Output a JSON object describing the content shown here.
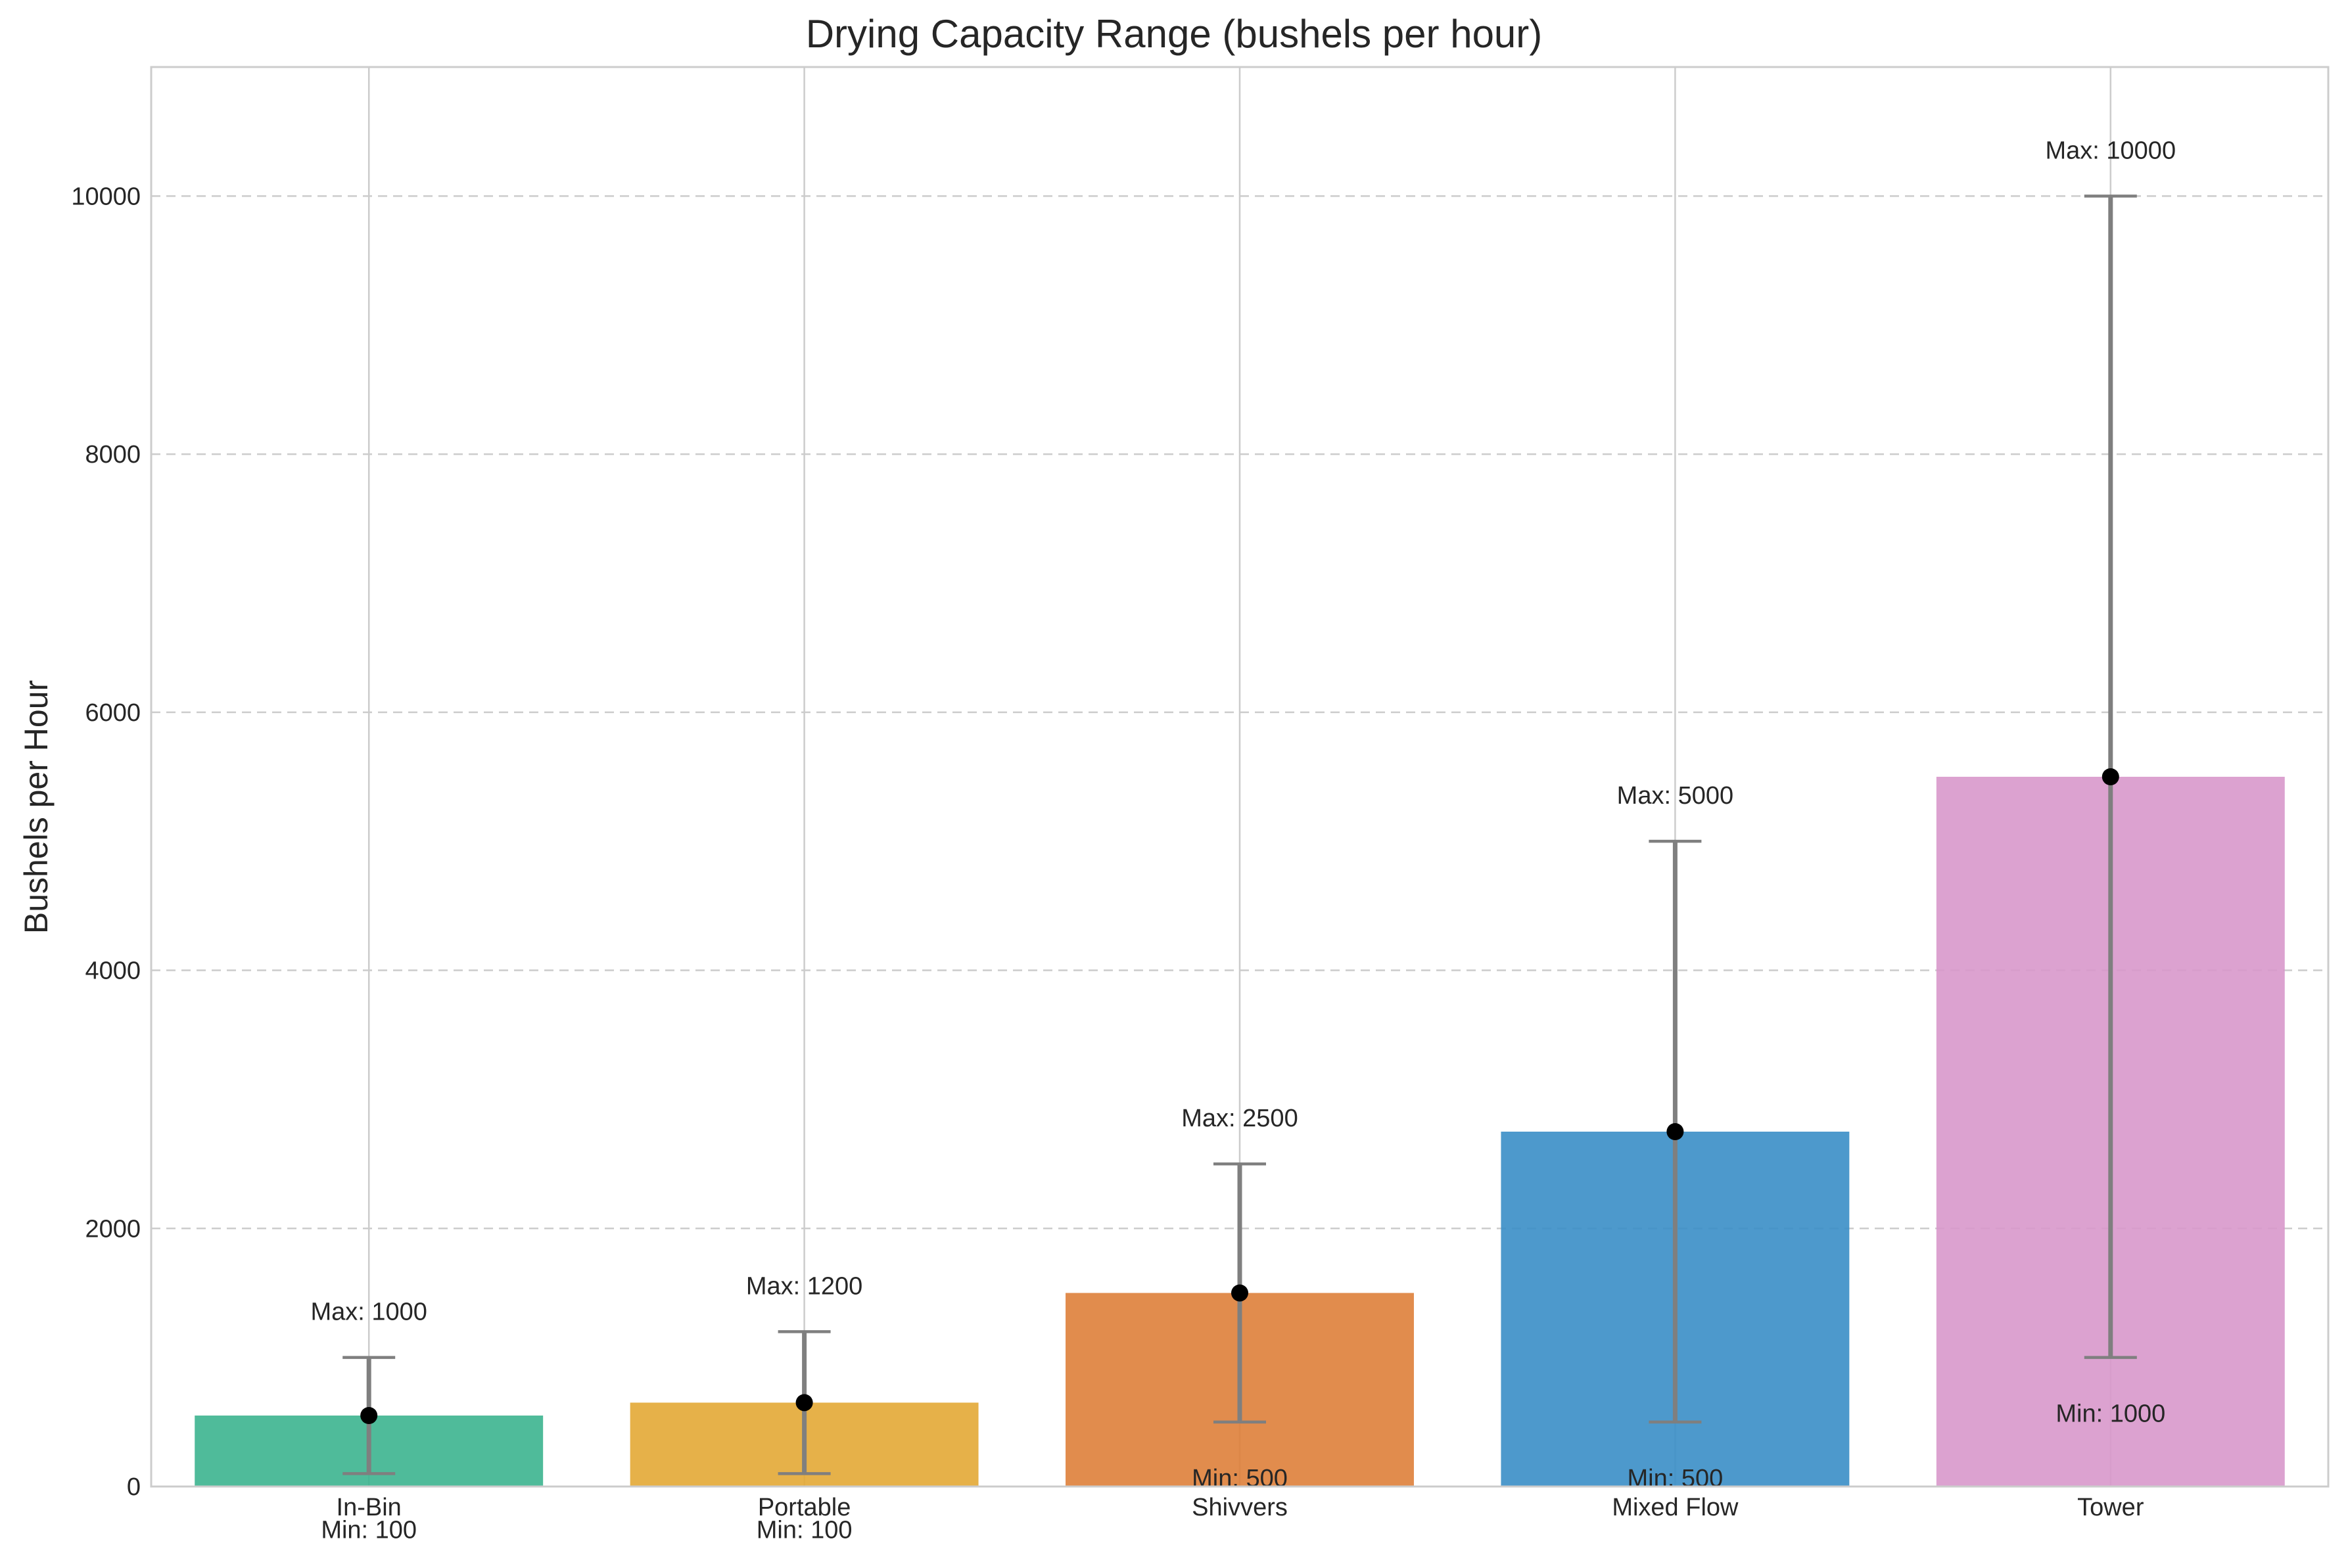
{
  "chart_data": {
    "type": "bar",
    "title": "Drying Capacity Range (bushels per hour)",
    "xlabel": "",
    "ylabel": "Bushels per Hour",
    "ylim": [
      0,
      11000
    ],
    "yticks": [
      0,
      2000,
      4000,
      6000,
      8000,
      10000
    ],
    "grid": {
      "x": true,
      "y": true,
      "y_style": "dashed"
    },
    "categories": [
      "In-Bin",
      "Portable",
      "Shivvers",
      "Mixed Flow",
      "Tower"
    ],
    "values": [
      550,
      650,
      1500,
      2750,
      5500
    ],
    "min": [
      100,
      100,
      500,
      500,
      1000
    ],
    "max": [
      1000,
      1200,
      2500,
      5000,
      10000
    ],
    "colors": [
      "#3cb48f",
      "#e3a835",
      "#de7f3a",
      "#3a8ec6",
      "#d898cb"
    ],
    "max_labels": [
      "Max: 1000",
      "Max: 1200",
      "Max: 2500",
      "Max: 5000",
      "Max: 10000"
    ],
    "min_labels": [
      "Min: 100",
      "Min: 100",
      "Min: 500",
      "Min: 500",
      "Min: 1000"
    ]
  }
}
